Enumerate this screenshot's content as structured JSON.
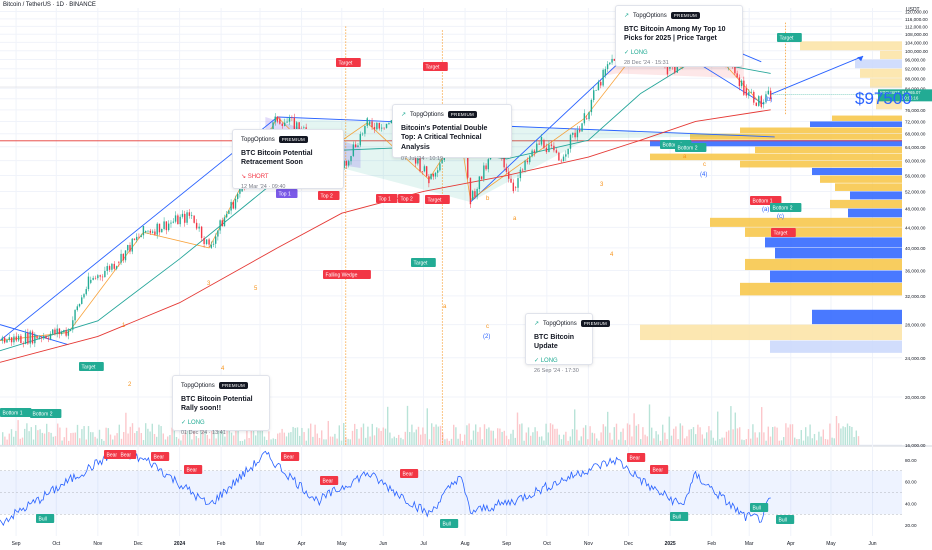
{
  "header": {
    "symbol_title": "Bitcoin / TetherUS · 1D · BINANCE",
    "currency": "USDT"
  },
  "colors": {
    "bull": "#22ab94",
    "bear": "#f23645",
    "accent": "#2962ff",
    "wave_orange": "#f7931a",
    "rsi_line": "#2962ff",
    "ma_green": "#26a69a",
    "ma_red": "#e53935"
  },
  "price_axis": {
    "ticks": [
      "120,000.00",
      "116,000.00",
      "112,000.00",
      "108,000.00",
      "104,000.00",
      "100,000.00",
      "96,000.00",
      "92,000.00",
      "88,000.00",
      "84,000.00",
      "80,000.00",
      "76,000.00",
      "72,000.00",
      "68,000.00",
      "64,000.00",
      "60,000.00",
      "56,000.00",
      "52,000.00",
      "48,000.00",
      "44,000.00",
      "40,000.00",
      "36,000.00",
      "32,000.00",
      "28,000.00",
      "24,000.00",
      "20,000.00",
      "16,000.00"
    ],
    "current_symbol": "BTCUSDT",
    "current_price": "81,665.07",
    "current_countdown": "20:06:16"
  },
  "rsi_axis": {
    "ticks": [
      "80.00",
      "60.00",
      "40.00",
      "20.00"
    ]
  },
  "time_axis": {
    "labels": [
      "Sep",
      "Oct",
      "Nov",
      "Dec",
      "2024",
      "Feb",
      "Mar",
      "Apr",
      "May",
      "Jun",
      "Jul",
      "Aug",
      "Sep",
      "Oct",
      "Nov",
      "Dec",
      "2025",
      "Feb",
      "Mar",
      "Apr",
      "May",
      "Jun"
    ]
  },
  "big_target_text": "$97500",
  "cards": [
    {
      "brand": "TopgOptions",
      "badge": "PREMIUM",
      "title": "BTC Bitcoin Potential Retracement Soon",
      "direction": "SHORT",
      "date": "12 Mar '24 · 09:40"
    },
    {
      "brand": "TopgOptions",
      "badge": "PREMIUM",
      "title": "Bitcoin's Potential Double Top: A Critical Technical Analysis",
      "direction": "",
      "date": "07 Jul '24 · 10:19"
    },
    {
      "brand": "TopgOptions",
      "badge": "PREMIUM",
      "title": "BTC Bitcoin Among My Top 10 Picks for 2025 | Price Target",
      "direction": "LONG",
      "date": "28 Dec '24 · 15:31"
    },
    {
      "brand": "TopgOptions",
      "badge": "PREMIUM",
      "title": "BTC Bitcoin Potential Rally soon!!",
      "direction": "LONG",
      "date": "01 Dec '24 · 13:41"
    },
    {
      "brand": "TopgOptions",
      "badge": "PREMIUM",
      "title": "BTC Bitcoin Update",
      "direction": "LONG",
      "date": "26 Sep '24 · 17:30"
    }
  ],
  "markers": {
    "target": "Target",
    "top1": "Top 1",
    "top2": "Top 2",
    "bottom1": "Bottom 1",
    "bottom2": "Bottom 2",
    "bear": "Bear",
    "bull": "Bull",
    "falling_wedge": "Falling Wedge"
  },
  "wave_labels": {
    "w1": "1",
    "w2": "2",
    "w3": "3",
    "w4": "4",
    "w5": "5",
    "a": "a",
    "b": "b",
    "c": "c",
    "bpar": "(b)",
    "cpar": "(c)",
    "two_par": "(2)",
    "four_par": "(4)",
    "a_par": "(a)"
  },
  "chart_data": {
    "type": "line",
    "title": "Bitcoin / TetherUS · 1D · BINANCE",
    "xlabel": "",
    "ylabel": "USDT",
    "ylim": [
      16000,
      122000
    ],
    "x": [
      "2023-08-20",
      "2023-09-15",
      "2023-10-10",
      "2023-10-25",
      "2023-11-15",
      "2023-12-05",
      "2024-01-10",
      "2024-01-23",
      "2024-02-15",
      "2024-03-14",
      "2024-04-01",
      "2024-04-13",
      "2024-05-01",
      "2024-05-20",
      "2024-06-07",
      "2024-07-05",
      "2024-07-28",
      "2024-08-05",
      "2024-08-25",
      "2024-09-06",
      "2024-09-27",
      "2024-10-10",
      "2024-10-29",
      "2024-11-12",
      "2024-11-22",
      "2024-12-05",
      "2024-12-17",
      "2024-12-30",
      "2025-01-10",
      "2025-01-20",
      "2025-01-31",
      "2025-02-10",
      "2025-02-25",
      "2025-03-10",
      "2025-03-17"
    ],
    "series": [
      {
        "values": [
          26000,
          26500,
          27200,
          34000,
          37500,
          43000,
          46500,
          40000,
          52000,
          73000,
          70000,
          61000,
          58000,
          71000,
          71500,
          55000,
          69000,
          50000,
          64000,
          53000,
          66000,
          60000,
          73000,
          89000,
          99000,
          103000,
          107500,
          92000,
          94000,
          107000,
          102000,
          97000,
          84000,
          78000,
          81665
        ]
      }
    ],
    "projection": {
      "from": [
        "2025-03-17",
        81665
      ],
      "to": [
        "2025-05-25",
        97500
      ]
    },
    "annotations": [
      "Target",
      "Top 1",
      "Top 2",
      "Bottom 1",
      "Bottom 2",
      "Falling Wedge",
      "$97500"
    ],
    "rsi": {
      "ylim": [
        10,
        90
      ],
      "levels": [
        70,
        30
      ],
      "x": [
        "2023-08-20",
        "2023-09-20",
        "2023-10-25",
        "2023-11-15",
        "2023-12-10",
        "2024-01-23",
        "2024-03-05",
        "2024-04-13",
        "2024-05-20",
        "2024-07-05",
        "2024-07-28",
        "2024-08-05",
        "2024-09-06",
        "2024-10-29",
        "2024-11-22",
        "2024-12-17",
        "2025-01-10",
        "2025-01-20",
        "2025-02-25",
        "2025-03-10",
        "2025-03-17"
      ],
      "values": [
        22,
        45,
        72,
        88,
        78,
        38,
        85,
        42,
        68,
        30,
        66,
        32,
        42,
        70,
        80,
        55,
        38,
        66,
        28,
        26,
        45
      ]
    },
    "grid": true
  }
}
